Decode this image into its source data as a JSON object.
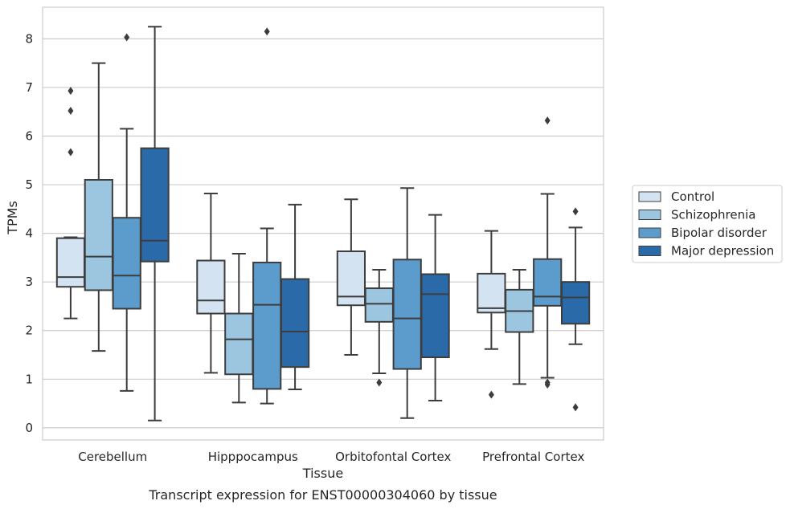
{
  "chart_data": {
    "type": "box",
    "title": "",
    "caption": "Transcript expression for ENST00000304060 by tissue",
    "xlabel": "Tissue",
    "ylabel": "TPMs",
    "ylim": [
      -0.25,
      8.65
    ],
    "yticks": [
      0,
      1,
      2,
      3,
      4,
      5,
      6,
      7,
      8
    ],
    "grid": "horizontal",
    "legend_position": "right",
    "categories": [
      "Cerebellum",
      "Hipppocampus",
      "Orbitofontal Cortex",
      "Prefrontal Cortex"
    ],
    "series": [
      {
        "name": "Control",
        "color": "#d4e3f2",
        "boxes": [
          {
            "whislo": 2.25,
            "q1": 2.9,
            "med": 3.1,
            "q3": 3.9,
            "whishi": 3.92,
            "fliers": [
              6.93,
              6.52,
              5.67
            ]
          },
          {
            "whislo": 1.13,
            "q1": 2.35,
            "med": 2.62,
            "q3": 3.44,
            "whishi": 4.82,
            "fliers": []
          },
          {
            "whislo": 1.5,
            "q1": 2.52,
            "med": 2.7,
            "q3": 3.63,
            "whishi": 4.7,
            "fliers": []
          },
          {
            "whislo": 1.62,
            "q1": 2.37,
            "med": 2.46,
            "q3": 3.17,
            "whishi": 4.05,
            "fliers": [
              0.68
            ]
          }
        ]
      },
      {
        "name": "Schizophrenia",
        "color": "#9cc5df",
        "boxes": [
          {
            "whislo": 1.58,
            "q1": 2.83,
            "med": 3.52,
            "q3": 5.1,
            "whishi": 7.5,
            "fliers": []
          },
          {
            "whislo": 0.52,
            "q1": 1.1,
            "med": 1.82,
            "q3": 2.35,
            "whishi": 3.58,
            "fliers": []
          },
          {
            "whislo": 1.12,
            "q1": 2.18,
            "med": 2.55,
            "q3": 2.87,
            "whishi": 3.25,
            "fliers": [
              0.93
            ]
          },
          {
            "whislo": 0.9,
            "q1": 1.97,
            "med": 2.4,
            "q3": 2.84,
            "whishi": 3.25,
            "fliers": []
          }
        ]
      },
      {
        "name": "Bipolar disorder",
        "color": "#5b9ccc",
        "boxes": [
          {
            "whislo": 0.76,
            "q1": 2.45,
            "med": 3.13,
            "q3": 4.32,
            "whishi": 6.15,
            "fliers": [
              8.03
            ]
          },
          {
            "whislo": 0.5,
            "q1": 0.8,
            "med": 2.53,
            "q3": 3.4,
            "whishi": 4.1,
            "fliers": [
              8.15
            ]
          },
          {
            "whislo": 0.2,
            "q1": 1.21,
            "med": 2.25,
            "q3": 3.46,
            "whishi": 4.93,
            "fliers": []
          },
          {
            "whislo": 1.03,
            "q1": 2.51,
            "med": 2.7,
            "q3": 3.47,
            "whishi": 4.81,
            "fliers": [
              6.32,
              0.93,
              0.89
            ]
          }
        ]
      },
      {
        "name": "Major depression",
        "color": "#2a6aa8",
        "boxes": [
          {
            "whislo": 0.15,
            "q1": 3.42,
            "med": 3.85,
            "q3": 5.75,
            "whishi": 8.25,
            "fliers": []
          },
          {
            "whislo": 0.79,
            "q1": 1.25,
            "med": 1.98,
            "q3": 3.06,
            "whishi": 4.59,
            "fliers": []
          },
          {
            "whislo": 0.56,
            "q1": 1.45,
            "med": 2.75,
            "q3": 3.16,
            "whishi": 4.38,
            "fliers": []
          },
          {
            "whislo": 1.72,
            "q1": 2.14,
            "med": 2.68,
            "q3": 3.0,
            "whishi": 4.12,
            "fliers": [
              4.45,
              0.42
            ]
          }
        ]
      }
    ]
  }
}
